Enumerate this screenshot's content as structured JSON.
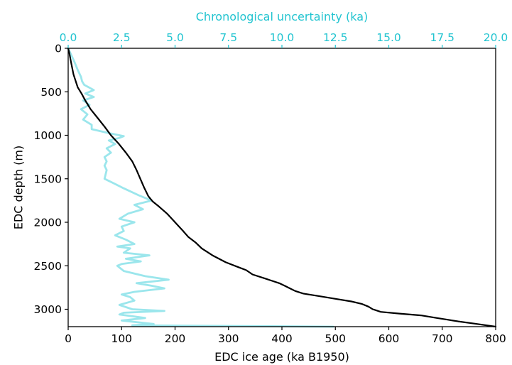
{
  "chart_data": {
    "type": "line",
    "title": "",
    "xlabel": "EDC ice age (ka B1950)",
    "ylabel": "EDC depth (m)",
    "x2label": "Chronological uncertainty (ka)",
    "xlim": [
      0,
      800
    ],
    "ylim": [
      3200,
      0
    ],
    "x2lim": [
      0,
      20
    ],
    "y_inverted": true,
    "xticks": [
      "0",
      "100",
      "200",
      "300",
      "400",
      "500",
      "600",
      "700",
      "800"
    ],
    "x2ticks": [
      "0.0",
      "2.5",
      "5.0",
      "7.5",
      "10.0",
      "12.5",
      "15.0",
      "17.5",
      "20.0"
    ],
    "yticks": [
      "0",
      "500",
      "1000",
      "1500",
      "2000",
      "2500",
      "3000"
    ],
    "grid": false,
    "colors": {
      "age": "#000000",
      "uncertainty": "#9be6ec",
      "top_axis": "#22c4d0",
      "axes": "#000000"
    },
    "series": [
      {
        "key": "age",
        "axis": "bottom",
        "x": [
          0,
          2,
          5,
          10,
          18,
          25,
          32,
          42,
          55,
          68,
          80,
          95,
          108,
          120,
          128,
          135,
          142,
          150,
          158,
          170,
          185,
          200,
          215,
          225,
          238,
          250,
          270,
          295,
          320,
          333,
          345,
          370,
          395,
          405,
          415,
          425,
          440,
          470,
          500,
          530,
          550,
          562,
          570,
          575,
          585,
          620,
          660,
          690,
          710,
          730,
          760,
          800
        ],
        "y": [
          0,
          50,
          150,
          300,
          450,
          520,
          600,
          700,
          800,
          900,
          1000,
          1100,
          1200,
          1300,
          1400,
          1500,
          1600,
          1700,
          1760,
          1820,
          1900,
          2000,
          2100,
          2170,
          2230,
          2300,
          2380,
          2460,
          2520,
          2550,
          2600,
          2650,
          2700,
          2730,
          2760,
          2790,
          2820,
          2850,
          2880,
          2910,
          2940,
          2970,
          3000,
          3010,
          3030,
          3050,
          3070,
          3100,
          3120,
          3140,
          3165,
          3200
        ]
      },
      {
        "key": "uncertainty",
        "axis": "top",
        "x": [
          0.0,
          0.15,
          0.3,
          0.45,
          0.6,
          0.65,
          0.75,
          1.2,
          0.8,
          1.2,
          0.7,
          1.0,
          0.6,
          0.9,
          0.7,
          1.1,
          1.1,
          1.8,
          2.4,
          2.6,
          2.4,
          1.9,
          2.2,
          1.8,
          2.0,
          1.7,
          1.8,
          1.7,
          1.8,
          1.7,
          2.2,
          2.6,
          3.3,
          3.9,
          3.1,
          3.5,
          2.8,
          2.4,
          3.1,
          2.5,
          2.6,
          2.2,
          2.7,
          3.1,
          2.3,
          2.9,
          2.6,
          3.8,
          2.7,
          3.4,
          2.5,
          2.3,
          2.6,
          3.6,
          4.7,
          3.2,
          3.9,
          4.5,
          3.1,
          2.5,
          2.9,
          3.1,
          2.4,
          3.0,
          4.5,
          2.6,
          2.4,
          3.6,
          2.5,
          4.0,
          3.0,
          12.4
        ],
        "y": [
          0,
          80,
          160,
          250,
          330,
          380,
          420,
          480,
          520,
          560,
          600,
          650,
          700,
          760,
          820,
          880,
          930,
          970,
          1000,
          1010,
          1030,
          1060,
          1100,
          1150,
          1200,
          1250,
          1300,
          1350,
          1400,
          1500,
          1560,
          1610,
          1690,
          1750,
          1800,
          1850,
          1900,
          1960,
          2000,
          2050,
          2100,
          2150,
          2200,
          2250,
          2280,
          2300,
          2350,
          2380,
          2420,
          2450,
          2480,
          2500,
          2560,
          2620,
          2660,
          2700,
          2730,
          2760,
          2800,
          2830,
          2860,
          2900,
          2950,
          3000,
          3020,
          3040,
          3060,
          3100,
          3130,
          3170,
          3185,
          3200
        ]
      }
    ]
  }
}
